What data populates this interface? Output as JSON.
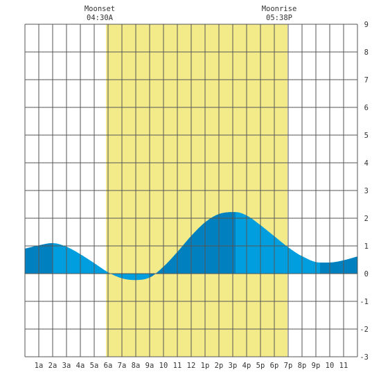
{
  "chart_data": {
    "type": "area",
    "title": "",
    "xlabel": "",
    "ylabel": "",
    "xlim": [
      0,
      24
    ],
    "ylim": [
      -3,
      9
    ],
    "grid": true,
    "x_tick_labels": [
      "1a",
      "2a",
      "3a",
      "4a",
      "5a",
      "6a",
      "7a",
      "8a",
      "9a",
      "10",
      "11",
      "12",
      "1p",
      "2p",
      "3p",
      "4p",
      "5p",
      "6p",
      "7p",
      "8p",
      "9p",
      "10",
      "11"
    ],
    "y_tick_labels": [
      "9",
      "8",
      "7",
      "6",
      "5",
      "4",
      "3",
      "2",
      "1",
      "0",
      "-1",
      "-2",
      "-3"
    ],
    "daylight_band": {
      "start_hour": 5.85,
      "end_hour": 18.95
    },
    "events": [
      {
        "label": "Moonset",
        "time": "04:30A",
        "hour": 4.5
      },
      {
        "label": "Moonrise",
        "time": "05:38P",
        "hour": 17.63
      }
    ],
    "series": [
      {
        "x": [
          0,
          1,
          2,
          3,
          4,
          5,
          6,
          7,
          7.9,
          9,
          10,
          11,
          12,
          13,
          14,
          15.2,
          16,
          17,
          18,
          19,
          20,
          21.3,
          22,
          23,
          24
        ],
        "values": [
          0.9,
          1.02,
          1.1,
          0.97,
          0.7,
          0.38,
          0.05,
          -0.17,
          -0.23,
          -0.14,
          0.25,
          0.78,
          1.36,
          1.85,
          2.15,
          2.22,
          2.1,
          1.75,
          1.35,
          0.95,
          0.63,
          0.4,
          0.4,
          0.48,
          0.62
        ]
      }
    ],
    "colors": {
      "water_light": "#009edf",
      "water_dark": "#0080bf",
      "daylight": "#f3eb8a",
      "grid": "#555555",
      "background": "#ffffff"
    }
  }
}
